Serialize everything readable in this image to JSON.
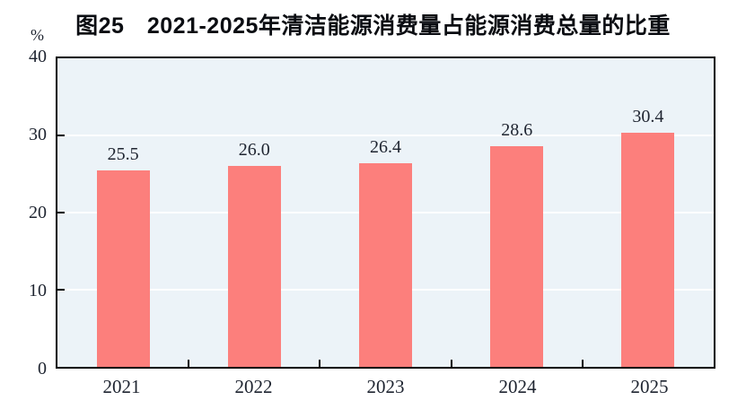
{
  "title": "图25　2021-2025年清洁能源消费量占能源消费总量的比重",
  "unit_label": "%",
  "colors": {
    "bar": "#fc7f7c",
    "plot_background": "#ecf3f8",
    "axis": "#000000",
    "gridline": "#ffffff",
    "text": "#1e2430",
    "title": "#0b0d12"
  },
  "chart_data": {
    "type": "bar",
    "title": "图25　2021-2025年清洁能源消费量占能源消费总量的比重",
    "categories": [
      "2021",
      "2022",
      "2023",
      "2024",
      "2025"
    ],
    "values": [
      25.5,
      26.0,
      26.4,
      28.6,
      30.4
    ],
    "value_labels": [
      "25.5",
      "26.0",
      "26.4",
      "28.6",
      "30.4"
    ],
    "xlabel": "",
    "ylabel": "%",
    "ylim": [
      0,
      40
    ],
    "yticks": [
      0,
      10,
      20,
      30,
      40
    ],
    "grid": "horizontal",
    "legend_position": "none"
  }
}
